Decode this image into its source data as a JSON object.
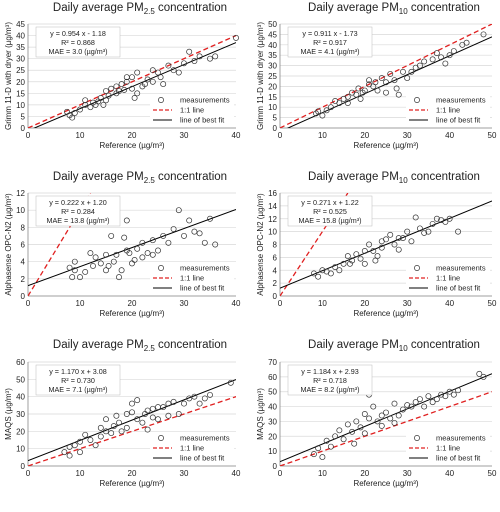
{
  "figure": {
    "legend_labels": [
      "measurements",
      "1:1 line",
      "line of best fit"
    ],
    "colors": {
      "points": "#333333",
      "one_to_one": "#e02020",
      "best_fit": "#000000",
      "grid": "#d9d9d9"
    }
  },
  "chart_data": [
    {
      "type": "scatter",
      "title": "Daily average PM2.5 concentration",
      "title_base": "Daily average PM",
      "title_sub": "2.5",
      "title_rest": " concentration",
      "xlabel": "Reference (µg/m³)",
      "ylabel": "Grimm 11-D with dryer (µg/m³)",
      "xlim": [
        0,
        40
      ],
      "ylim": [
        0,
        45
      ],
      "xticks": [
        0,
        10,
        20,
        30,
        40
      ],
      "yticks": [
        0,
        5,
        10,
        15,
        20,
        25,
        30,
        35,
        40,
        45
      ],
      "fit": {
        "slope": 0.954,
        "intercept": -1.18
      },
      "stats": [
        "y = 0.954 x - 1.18",
        "R² = 0.868",
        "MAE = 3.0 (µg/m³)"
      ],
      "legend_pos": "bottom-right",
      "points": [
        [
          7.5,
          7
        ],
        [
          8,
          5.5
        ],
        [
          8.5,
          4.5
        ],
        [
          9,
          6.5
        ],
        [
          10,
          8
        ],
        [
          11,
          10
        ],
        [
          11,
          12
        ],
        [
          12,
          9
        ],
        [
          12.5,
          11
        ],
        [
          13,
          10
        ],
        [
          13.5,
          11.5
        ],
        [
          14,
          13
        ],
        [
          14.5,
          10
        ],
        [
          15,
          12
        ],
        [
          15,
          16
        ],
        [
          15.5,
          14
        ],
        [
          16,
          17
        ],
        [
          17,
          15
        ],
        [
          17,
          18
        ],
        [
          17.5,
          16
        ],
        [
          18,
          19
        ],
        [
          18.5,
          16.5
        ],
        [
          19,
          22
        ],
        [
          19,
          20
        ],
        [
          20,
          22
        ],
        [
          20,
          17
        ],
        [
          20.5,
          13
        ],
        [
          21,
          24
        ],
        [
          21,
          15
        ],
        [
          22,
          18
        ],
        [
          22.5,
          19
        ],
        [
          23,
          21
        ],
        [
          24,
          20
        ],
        [
          24,
          25
        ],
        [
          25,
          24
        ],
        [
          25.5,
          22
        ],
        [
          26,
          19
        ],
        [
          27,
          27
        ],
        [
          28,
          25
        ],
        [
          29,
          24
        ],
        [
          30,
          28
        ],
        [
          31,
          33
        ],
        [
          32,
          29
        ],
        [
          33,
          31
        ],
        [
          35,
          30
        ],
        [
          36,
          31
        ],
        [
          40,
          39
        ]
      ]
    },
    {
      "type": "scatter",
      "title": "Daily average PM10 concentration",
      "title_base": "Daily average PM",
      "title_sub": "10",
      "title_rest": " concentration",
      "xlabel": "Reference (µg/m³)",
      "ylabel": "Grimm 11-D with dryer (µg/m³)",
      "xlim": [
        0,
        50
      ],
      "ylim": [
        0,
        50
      ],
      "xticks": [
        0,
        10,
        20,
        30,
        40,
        50
      ],
      "yticks": [
        0,
        5,
        10,
        15,
        20,
        25,
        30,
        35,
        40,
        45,
        50
      ],
      "fit": {
        "slope": 0.911,
        "intercept": -1.73
      },
      "stats": [
        "y = 0.911 x - 1.73",
        "R² = 0.917",
        "MAE = 4.1 (µg/m³)"
      ],
      "legend_pos": "bottom-right",
      "points": [
        [
          8.5,
          7
        ],
        [
          9,
          8
        ],
        [
          10,
          6
        ],
        [
          11,
          8.5
        ],
        [
          12,
          10
        ],
        [
          13,
          13
        ],
        [
          14,
          12
        ],
        [
          15,
          14
        ],
        [
          16,
          12
        ],
        [
          16,
          15
        ],
        [
          17,
          17
        ],
        [
          18,
          16
        ],
        [
          18.5,
          19
        ],
        [
          19,
          14
        ],
        [
          19.5,
          17
        ],
        [
          20,
          18
        ],
        [
          21,
          21
        ],
        [
          21,
          23
        ],
        [
          22,
          20
        ],
        [
          22.5,
          22
        ],
        [
          23,
          18
        ],
        [
          24,
          24
        ],
        [
          25,
          22
        ],
        [
          25,
          17
        ],
        [
          26,
          26
        ],
        [
          27,
          23
        ],
        [
          27.5,
          19
        ],
        [
          28,
          16
        ],
        [
          29,
          27
        ],
        [
          30,
          24
        ],
        [
          31,
          27
        ],
        [
          32,
          29
        ],
        [
          33,
          30
        ],
        [
          34,
          32
        ],
        [
          36,
          33
        ],
        [
          37,
          36
        ],
        [
          38,
          34
        ],
        [
          39,
          31
        ],
        [
          40,
          35
        ],
        [
          41,
          37
        ],
        [
          43,
          40
        ],
        [
          44,
          41
        ],
        [
          48,
          45
        ]
      ]
    },
    {
      "type": "scatter",
      "title": "Daily average PM2.5 concentration",
      "title_base": "Daily average PM",
      "title_sub": "2.5",
      "title_rest": " concentration",
      "xlabel": "Reference (µg/m³)",
      "ylabel": "Alphasense OPC-N2 (µg/m³)",
      "xlim": [
        0,
        40
      ],
      "ylim": [
        0,
        12
      ],
      "xticks": [
        0,
        10,
        20,
        30,
        40
      ],
      "yticks": [
        0,
        2,
        4,
        6,
        8,
        10,
        12
      ],
      "fit": {
        "slope": 0.222,
        "intercept": 1.2
      },
      "stats": [
        "y = 0.222 x + 1.20",
        "R² = 0.284",
        "MAE = 13.8 (µg/m³)"
      ],
      "legend_pos": "bottom-right",
      "points": [
        [
          8,
          3.3
        ],
        [
          8.5,
          2.2
        ],
        [
          9,
          4
        ],
        [
          9,
          3
        ],
        [
          10,
          2.2
        ],
        [
          11,
          2.8
        ],
        [
          12,
          5
        ],
        [
          12.5,
          3.5
        ],
        [
          13,
          4.5
        ],
        [
          14,
          3.8
        ],
        [
          15,
          3
        ],
        [
          15,
          4.8
        ],
        [
          15.5,
          3.5
        ],
        [
          16,
          7
        ],
        [
          16.5,
          4
        ],
        [
          17,
          4.8
        ],
        [
          17.5,
          2.2
        ],
        [
          18,
          3
        ],
        [
          18.5,
          6.8
        ],
        [
          19,
          5.3
        ],
        [
          19,
          8.8
        ],
        [
          19.5,
          5
        ],
        [
          20,
          3.8
        ],
        [
          20.5,
          4.2
        ],
        [
          21,
          5.5
        ],
        [
          22,
          4.5
        ],
        [
          22,
          6.2
        ],
        [
          23,
          5
        ],
        [
          24,
          4.8
        ],
        [
          24,
          6.5
        ],
        [
          25,
          5.3
        ],
        [
          26,
          7
        ],
        [
          27,
          6.2
        ],
        [
          28,
          7.8
        ],
        [
          29,
          10
        ],
        [
          30,
          7
        ],
        [
          31,
          8.8
        ],
        [
          32,
          7.5
        ],
        [
          33,
          7.3
        ],
        [
          34,
          6.2
        ],
        [
          35,
          9
        ],
        [
          36,
          6
        ]
      ]
    },
    {
      "type": "scatter",
      "title": "Daily average PM10 concentration",
      "title_base": "Daily average PM",
      "title_sub": "10",
      "title_rest": " concentration",
      "xlabel": "Reference (µg/m³)",
      "ylabel": "Alphasense OPC-N2 (µg/m³)",
      "xlim": [
        0,
        50
      ],
      "ylim": [
        0,
        16
      ],
      "xticks": [
        0,
        10,
        20,
        30,
        40,
        50
      ],
      "yticks": [
        0,
        2,
        4,
        6,
        8,
        10,
        12,
        14,
        16
      ],
      "fit": {
        "slope": 0.271,
        "intercept": 1.22
      },
      "stats": [
        "y = 0.271 x + 1.22",
        "R² = 0.525",
        "MAE = 15.8 (µg/m³)"
      ],
      "legend_pos": "bottom-right",
      "points": [
        [
          8,
          3.5
        ],
        [
          9,
          3
        ],
        [
          10,
          4
        ],
        [
          11,
          3.8
        ],
        [
          12,
          3.5
        ],
        [
          13,
          4.5
        ],
        [
          14,
          4
        ],
        [
          15,
          5
        ],
        [
          16,
          6.2
        ],
        [
          16.5,
          5
        ],
        [
          17,
          5.5
        ],
        [
          18,
          6.5
        ],
        [
          19,
          5.8
        ],
        [
          20,
          7
        ],
        [
          20,
          5
        ],
        [
          21,
          8
        ],
        [
          22,
          7
        ],
        [
          22.5,
          5.5
        ],
        [
          23,
          6.2
        ],
        [
          24,
          8.5
        ],
        [
          24,
          7.5
        ],
        [
          25,
          8.8
        ],
        [
          26,
          9.5
        ],
        [
          27,
          8
        ],
        [
          28,
          9
        ],
        [
          28,
          7.2
        ],
        [
          29,
          9
        ],
        [
          30,
          10
        ],
        [
          31,
          8.5
        ],
        [
          32,
          12.2
        ],
        [
          33,
          10.5
        ],
        [
          34,
          9.8
        ],
        [
          35,
          10
        ],
        [
          36,
          11.2
        ],
        [
          37,
          12
        ],
        [
          38,
          11.8
        ],
        [
          39,
          11.5
        ],
        [
          40,
          12
        ],
        [
          42,
          10
        ]
      ]
    },
    {
      "type": "scatter",
      "title": "Daily average PM2.5 concentration",
      "title_base": "Daily average PM",
      "title_sub": "2.5",
      "title_rest": " concentration",
      "xlabel": "Reference (µg/m³)",
      "ylabel": "MAQS (µg/m³)",
      "xlim": [
        0,
        40
      ],
      "ylim": [
        0,
        60
      ],
      "xticks": [
        0,
        10,
        20,
        30,
        40
      ],
      "yticks": [
        0,
        10,
        20,
        30,
        40,
        50,
        60
      ],
      "fit": {
        "slope": 1.17,
        "intercept": 3.08
      },
      "stats": [
        "y = 1.170 x + 3.08",
        "R² = 0.730",
        "MAE = 7.1 (µg/m³)"
      ],
      "legend_pos": "bottom-right",
      "points": [
        [
          7,
          8
        ],
        [
          8,
          11
        ],
        [
          8,
          6
        ],
        [
          9,
          12
        ],
        [
          10,
          8
        ],
        [
          10,
          14
        ],
        [
          11,
          18
        ],
        [
          12,
          15
        ],
        [
          13,
          12
        ],
        [
          14,
          22
        ],
        [
          14,
          17
        ],
        [
          15,
          20
        ],
        [
          15,
          27
        ],
        [
          16,
          19
        ],
        [
          16.5,
          23
        ],
        [
          17,
          29
        ],
        [
          17.5,
          25
        ],
        [
          18,
          20
        ],
        [
          19,
          30
        ],
        [
          19,
          22
        ],
        [
          20,
          31
        ],
        [
          20,
          36
        ],
        [
          21,
          27
        ],
        [
          21,
          38
        ],
        [
          22,
          25
        ],
        [
          22.5,
          30
        ],
        [
          23,
          21
        ],
        [
          23,
          32
        ],
        [
          24,
          33
        ],
        [
          24,
          28
        ],
        [
          25,
          34
        ],
        [
          25,
          27
        ],
        [
          26,
          34
        ],
        [
          27,
          29
        ],
        [
          27,
          36
        ],
        [
          28,
          37
        ],
        [
          29,
          30
        ],
        [
          30,
          36
        ],
        [
          31,
          39
        ],
        [
          32,
          40
        ],
        [
          33,
          36
        ],
        [
          34,
          39
        ],
        [
          35,
          41
        ],
        [
          39,
          48
        ]
      ]
    },
    {
      "type": "scatter",
      "title": "Daily average PM10 concentration",
      "title_base": "Daily average PM",
      "title_sub": "10",
      "title_rest": " concentration",
      "xlabel": "Reference (µg/m³)",
      "ylabel": "MAQS (µg/m³)",
      "xlim": [
        0,
        50
      ],
      "ylim": [
        0,
        70
      ],
      "xticks": [
        0,
        10,
        20,
        30,
        40,
        50
      ],
      "yticks": [
        0,
        10,
        20,
        30,
        40,
        50,
        60,
        70
      ],
      "fit": {
        "slope": 1.184,
        "intercept": 2.93
      },
      "stats": [
        "y = 1.184 x + 2.93",
        "R² = 0.718",
        "MAE = 8.2 (µg/m³)"
      ],
      "legend_pos": "bottom-right",
      "points": [
        [
          8,
          8
        ],
        [
          9,
          12
        ],
        [
          10,
          6
        ],
        [
          11,
          17
        ],
        [
          12,
          13
        ],
        [
          13,
          20
        ],
        [
          14,
          24
        ],
        [
          15,
          18
        ],
        [
          16,
          28
        ],
        [
          17,
          23
        ],
        [
          17.5,
          15
        ],
        [
          18,
          30
        ],
        [
          19,
          26
        ],
        [
          20,
          35
        ],
        [
          20,
          22
        ],
        [
          21,
          48
        ],
        [
          21,
          32
        ],
        [
          22,
          40
        ],
        [
          23,
          30
        ],
        [
          24,
          34
        ],
        [
          24,
          27
        ],
        [
          25,
          36
        ],
        [
          26,
          32
        ],
        [
          27,
          42
        ],
        [
          27,
          29
        ],
        [
          28,
          34
        ],
        [
          29,
          38
        ],
        [
          30,
          41
        ],
        [
          31,
          40
        ],
        [
          32,
          43
        ],
        [
          33,
          45
        ],
        [
          34,
          40
        ],
        [
          35,
          47
        ],
        [
          36,
          43
        ],
        [
          37,
          45
        ],
        [
          38,
          48
        ],
        [
          39,
          47
        ],
        [
          40,
          50
        ],
        [
          41,
          48
        ],
        [
          42,
          51
        ],
        [
          47,
          62
        ],
        [
          48,
          60
        ]
      ]
    }
  ]
}
